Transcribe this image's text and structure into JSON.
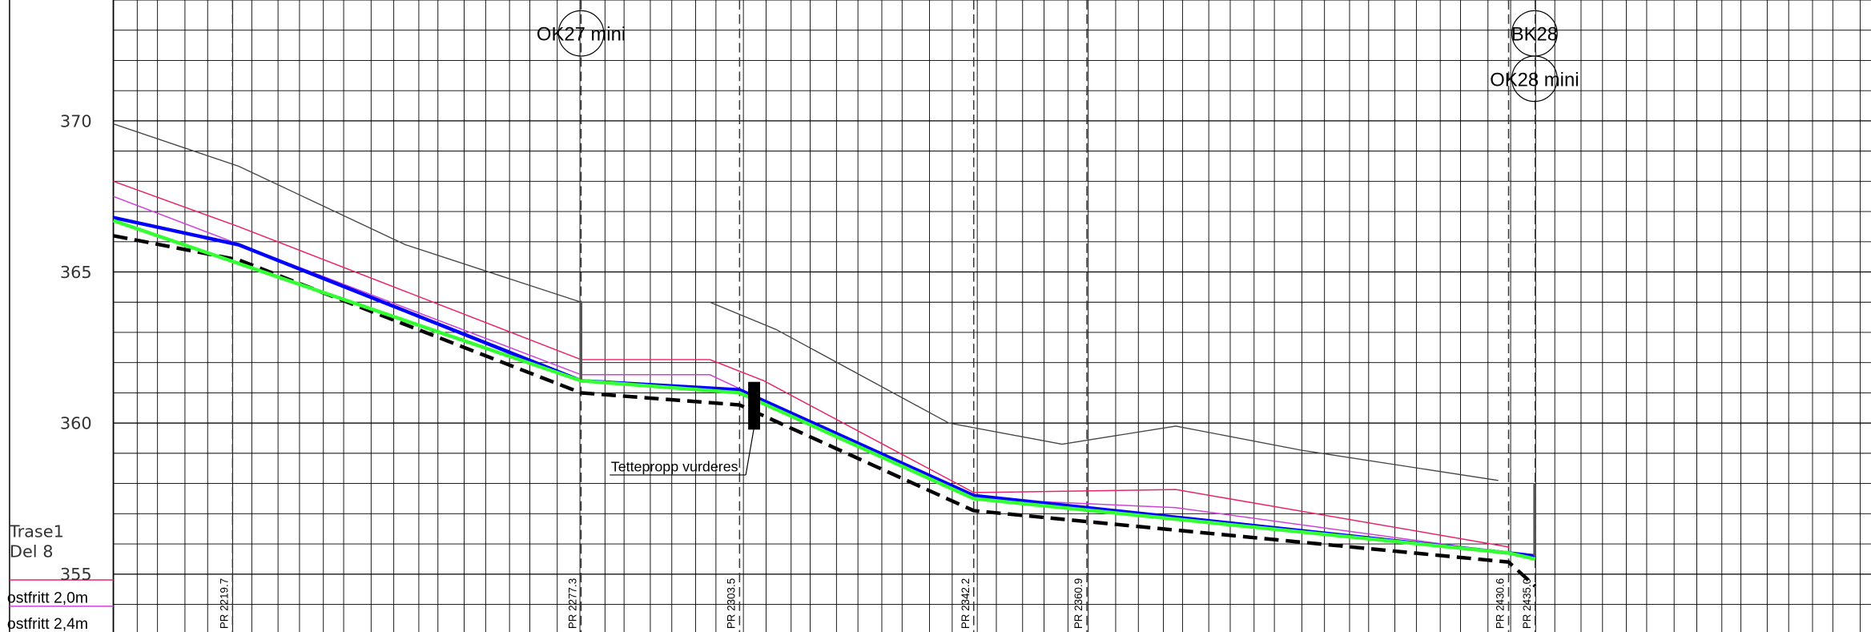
{
  "chart_data": {
    "type": "line",
    "xlim": [
      2200,
      2490.5
    ],
    "ylim": [
      353.07,
      374
    ],
    "yticks": [
      355,
      360,
      365,
      370
    ],
    "grid": true,
    "stations": [
      {
        "value": 2219.7,
        "label": "PR 2219.7"
      },
      {
        "value": 2277.3,
        "label": "PR 2277.3"
      },
      {
        "value": 2303.5,
        "label": "PR 2303.5"
      },
      {
        "value": 2342.2,
        "label": "PR 2342.2"
      },
      {
        "value": 2360.9,
        "label": "PR 2360.9"
      },
      {
        "value": 2430.6,
        "label": "PR 2430.6"
      },
      {
        "value": 2435.0,
        "label": "PR 2435.0"
      }
    ],
    "series": [
      {
        "color": "#444444",
        "x": [
          2200.0,
          2220.7,
          2248.3,
          2277.3,
          2298.6,
          2309.5,
          2338.1,
          2356.8,
          2375.6,
          2396.4,
          2428.9
        ],
        "values": [
          369.9,
          368.5,
          365.9,
          364.0,
          364.0,
          363.1,
          360.0,
          359.3,
          359.9,
          359.1,
          358.1
        ]
      },
      {
        "name": "ostfritt 2,0m",
        "color": "#e8246a",
        "x": [
          2200.0,
          2220.7,
          2277.3,
          2298.6,
          2307.5,
          2342.2,
          2375.6,
          2430.6
        ],
        "values": [
          368.0,
          366.5,
          362.1,
          362.1,
          361.4,
          357.7,
          357.8,
          355.9
        ]
      },
      {
        "name": "ostfritt 2,4m",
        "color": "#d040d8",
        "x": [
          2200.0,
          2277.3,
          2298.6,
          2342.2,
          2375.6,
          2430.6
        ],
        "values": [
          367.5,
          361.6,
          361.6,
          357.5,
          357.2,
          355.7
        ]
      },
      {
        "color": "#0000ff",
        "x": [
          2200.0,
          2220.7,
          2277.3,
          2303.5,
          2342.2,
          2430.6,
          2435.0
        ],
        "values": [
          366.8,
          365.9,
          361.4,
          361.1,
          357.6,
          355.7,
          355.6
        ]
      },
      {
        "color": "#33ff33",
        "x": [
          2200.0,
          2277.3,
          2303.5,
          2342.2,
          2430.6,
          2435.0
        ],
        "values": [
          366.7,
          361.4,
          361.0,
          357.5,
          355.7,
          355.5
        ]
      },
      {
        "color": "#000000",
        "dashed": true,
        "x": [
          2200.0,
          2220.7,
          2277.3,
          2303.5,
          2342.2,
          2430.6,
          2435.0
        ],
        "values": [
          366.2,
          365.4,
          361.0,
          360.6,
          357.1,
          355.4,
          354.6
        ]
      }
    ],
    "annotations": [
      "OK27 mini",
      "BK28",
      "OK28 mini",
      "Tettepropp vurderes"
    ],
    "section_title": [
      "Trase1",
      "Del 8"
    ]
  }
}
